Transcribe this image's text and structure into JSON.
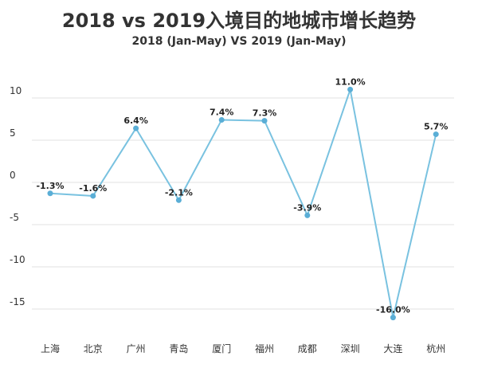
{
  "chart_data": {
    "type": "line",
    "title": "2018 vs 2019入境目的地城市增长趋势",
    "subtitle": "2018 (Jan-May)  VS 2019 (Jan-May)",
    "xlabel": "",
    "ylabel": "",
    "categories": [
      "上海",
      "北京",
      "广州",
      "青岛",
      "厦门",
      "福州",
      "成都",
      "深圳",
      "大连",
      "杭州"
    ],
    "series": [
      {
        "values": [
          -1.3,
          -1.6,
          6.4,
          -2.1,
          7.4,
          7.3,
          -3.9,
          11.0,
          -16.0,
          5.7
        ],
        "labels": [
          "-1.3%",
          "-1.6%",
          "6.4%",
          "-2.1%",
          "7.4%",
          "7.3%",
          "-3.9%",
          "11.0%",
          "-16.0%",
          "5.7%"
        ]
      }
    ],
    "yticks": [
      10,
      5,
      0,
      -5,
      -10,
      -15
    ],
    "ylim": [
      -17.5,
      12.5
    ],
    "grid": true,
    "legend": "none",
    "colors": {
      "line": "#79c2e0",
      "marker": "#5aaed6"
    }
  }
}
